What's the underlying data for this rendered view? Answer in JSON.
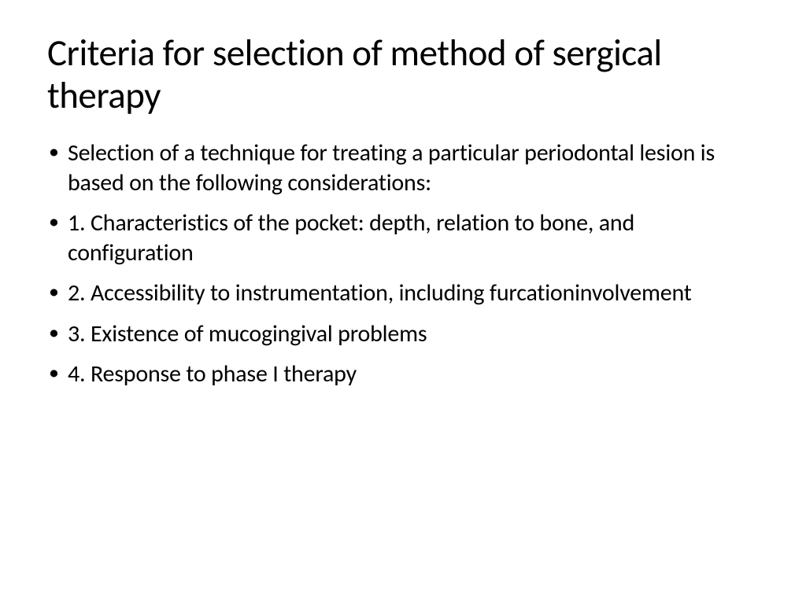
{
  "slide": {
    "title": "Criteria for selection of method of sergical therapy",
    "title_fontsize": 47,
    "title_color": "#000000",
    "body_fontsize": 30,
    "body_color": "#000000",
    "background_color": "#ffffff",
    "bullets": [
      "Selection of a technique for treating a particular periodontal lesion is based on the following considerations:",
      "1. Characteristics of the pocket: depth, relation to bone, and configuration",
      "2. Accessibility to instrumentation, including furcationinvolvement",
      "3. Existence of mucogingival problems",
      "4. Response to phase I therapy"
    ]
  }
}
